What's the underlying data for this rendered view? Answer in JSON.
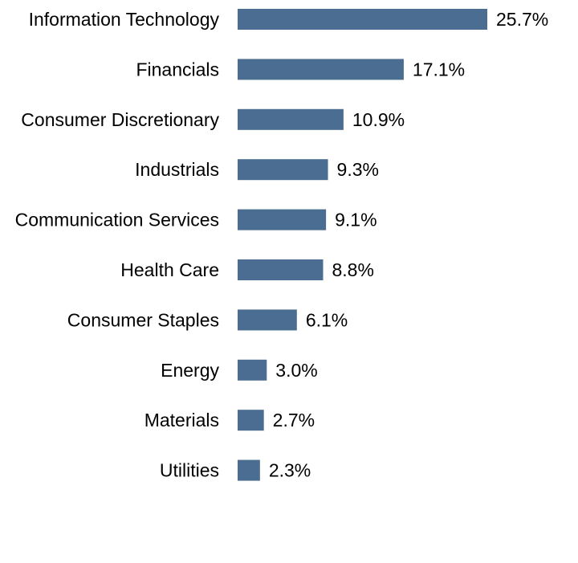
{
  "chart_data": {
    "type": "bar",
    "orientation": "horizontal",
    "categories": [
      "Information Technology",
      "Financials",
      "Consumer Discretionary",
      "Industrials",
      "Communication Services",
      "Health Care",
      "Consumer Staples",
      "Energy",
      "Materials",
      "Utilities"
    ],
    "values": [
      25.7,
      17.1,
      10.9,
      9.3,
      9.1,
      8.8,
      6.1,
      3.0,
      2.7,
      2.3
    ],
    "value_labels": [
      "25.7%",
      "17.1%",
      "10.9%",
      "9.3%",
      "9.1%",
      "8.8%",
      "6.1%",
      "3.0%",
      "2.7%",
      "2.3%"
    ],
    "xlim": [
      0,
      25.7
    ],
    "grid": false,
    "legend": "none",
    "bar_color": "#4a6d91",
    "text_color": "#000000"
  }
}
